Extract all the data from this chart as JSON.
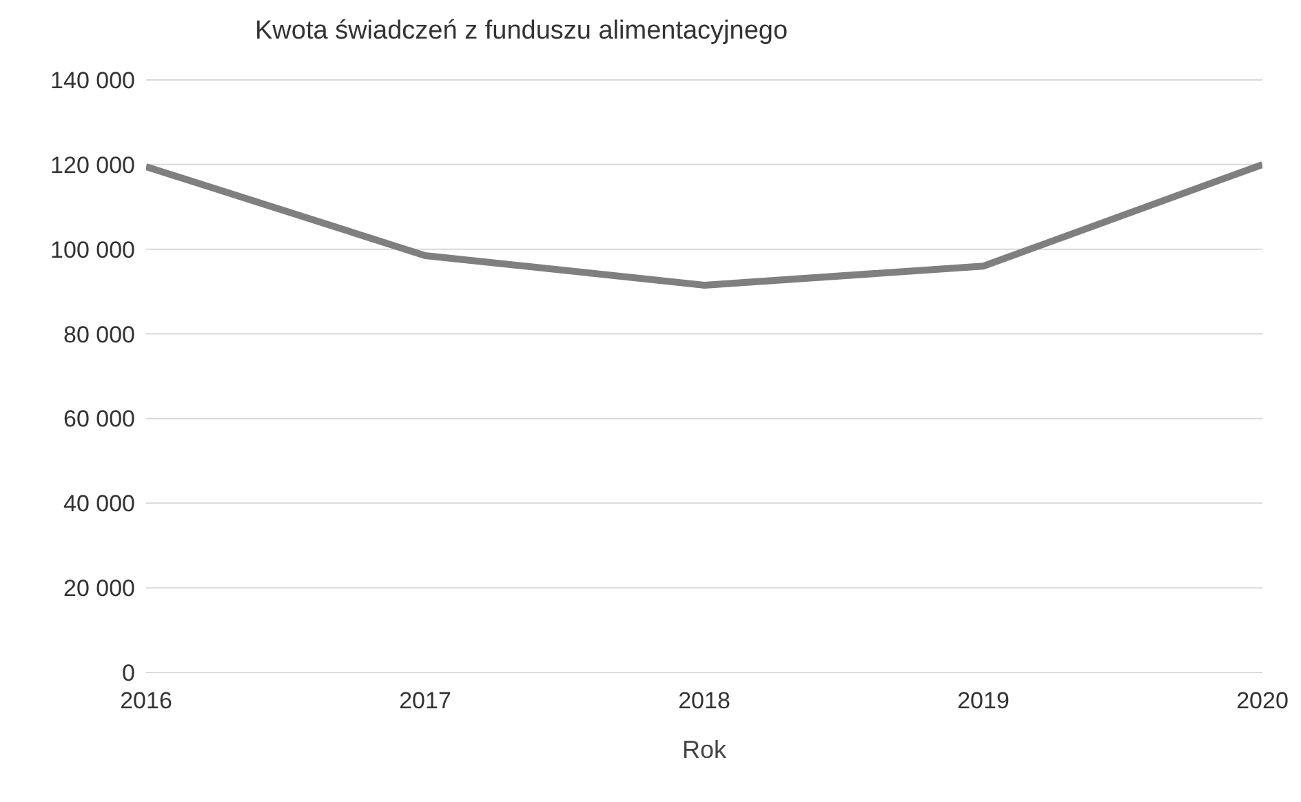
{
  "chart_data": {
    "type": "line",
    "title": "Kwota świadczeń z funduszu alimentacyjnego",
    "xlabel": "Rok",
    "x": [
      2016,
      2017,
      2018,
      2019,
      2020
    ],
    "series": [
      {
        "color": "#7f7f7f",
        "values": [
          119500,
          98500,
          91500,
          96000,
          120000
        ]
      }
    ],
    "xlim": [
      2016,
      2020
    ],
    "xticks": [
      2016,
      2017,
      2018,
      2019,
      2020
    ],
    "ylim": [
      0,
      140000
    ],
    "yticks": [
      {
        "value": 0,
        "label": "0"
      },
      {
        "value": 20000,
        "label": "20 000"
      },
      {
        "value": 40000,
        "label": "40 000"
      },
      {
        "value": 60000,
        "label": "60 000"
      },
      {
        "value": 80000,
        "label": "80 000"
      },
      {
        "value": 100000,
        "label": "100 000"
      },
      {
        "value": 120000,
        "label": "120 000"
      },
      {
        "value": 140000,
        "label": "140 000"
      }
    ],
    "grid": "y",
    "marker": "none",
    "line_style": "solid"
  }
}
